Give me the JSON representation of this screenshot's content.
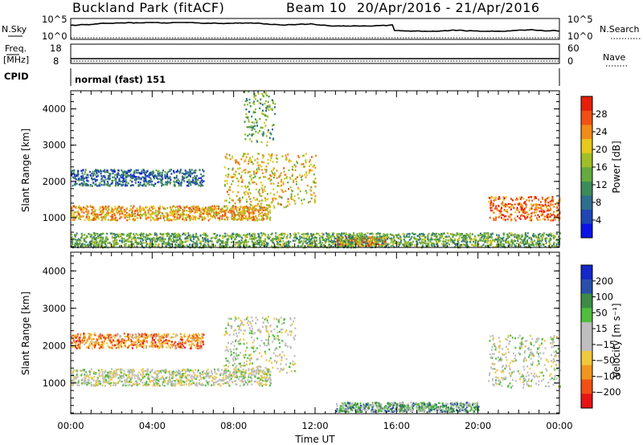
{
  "header": {
    "station": "Buckland Park (fitACF)",
    "beam": "Beam 10",
    "dates": "20/Apr/2016 - 21/Apr/2016"
  },
  "strip": {
    "nsky_label": "N.Sky",
    "nsearch_label": "N.Search",
    "noise_ticks": [
      "10^5",
      "10^0"
    ],
    "freq_label": "Freq.",
    "freq_unit": "[MHz]",
    "freq_ticks": [
      "18",
      "8"
    ],
    "nave_label": "Nave",
    "nave_ticks": [
      "60",
      "0"
    ],
    "cpid_label": "CPID",
    "cpid_text": "normal (fast) 151"
  },
  "chart_data": [
    {
      "type": "heatmap",
      "name": "Power",
      "ylabel": "Slant Range [km]",
      "xlabel": "Time UT",
      "xticks": [
        "00:00",
        "04:00",
        "08:00",
        "12:00",
        "16:00",
        "20:00",
        "00:00"
      ],
      "xlim_hours": [
        0,
        24
      ],
      "ylim": [
        180,
        4500
      ],
      "yticks": [
        1000,
        2000,
        3000,
        4000
      ],
      "colorbar": {
        "label": "Power [dB]",
        "ticks": [
          "4",
          "8",
          "12",
          "16",
          "20",
          "24",
          "28"
        ],
        "colors": [
          "#0a14e6",
          "#1e46b4",
          "#2d6e8c",
          "#3c8c5a",
          "#64aa3c",
          "#a0be28",
          "#e6c81e",
          "#f08c19",
          "#f05014",
          "#e61e0a"
        ]
      },
      "echo_bands": [
        {
          "t": [
            0,
            9.8
          ],
          "range_km": [
            950,
            1350
          ],
          "level_db": 22
        },
        {
          "t": [
            0,
            6.5
          ],
          "range_km": [
            1900,
            2350
          ],
          "level_db": 8
        },
        {
          "t": [
            7.5,
            12
          ],
          "range_km": [
            1300,
            2800
          ],
          "level_db": 20
        },
        {
          "t": [
            8.5,
            10
          ],
          "range_km": [
            3000,
            4500
          ],
          "level_db": 14
        },
        {
          "t": [
            13,
            15.5
          ],
          "range_km": [
            250,
            500
          ],
          "level_db": 26
        },
        {
          "t": [
            20.5,
            24
          ],
          "range_km": [
            950,
            1600
          ],
          "level_db": 26
        },
        {
          "t": [
            0,
            24
          ],
          "range_km": [
            200,
            600
          ],
          "level_db": 14
        }
      ]
    },
    {
      "type": "heatmap",
      "name": "Velocity",
      "ylabel": "Slant Range [km]",
      "xlabel": "Time UT",
      "xticks": [
        "00:00",
        "04:00",
        "08:00",
        "12:00",
        "16:00",
        "20:00",
        "00:00"
      ],
      "xlim_hours": [
        0,
        24
      ],
      "ylim": [
        180,
        4500
      ],
      "yticks": [
        1000,
        2000,
        3000,
        4000
      ],
      "colorbar": {
        "label": "Velocity [m s⁻¹]",
        "ticks": [
          "200",
          "100",
          "50",
          "15",
          "−15",
          "−50",
          "−100",
          "−200"
        ],
        "colors": [
          "#1428c8",
          "#2850aa",
          "#3c8c46",
          "#50be3c",
          "#bebebe",
          "#bebebe",
          "#f0c83c",
          "#f0961e",
          "#f05014",
          "#e61414"
        ]
      },
      "echo_bands": [
        {
          "t": [
            0,
            9.8
          ],
          "range_km": [
            950,
            1400
          ],
          "velocity": 0
        },
        {
          "t": [
            0,
            6.5
          ],
          "range_km": [
            1950,
            2350
          ],
          "velocity": -100
        },
        {
          "t": [
            7.5,
            11
          ],
          "range_km": [
            1300,
            2800
          ],
          "velocity": 0
        },
        {
          "t": [
            13,
            20
          ],
          "range_km": [
            250,
            500
          ],
          "velocity": 30
        },
        {
          "t": [
            20.5,
            24
          ],
          "range_km": [
            900,
            2300
          ],
          "velocity": 0
        }
      ]
    }
  ]
}
